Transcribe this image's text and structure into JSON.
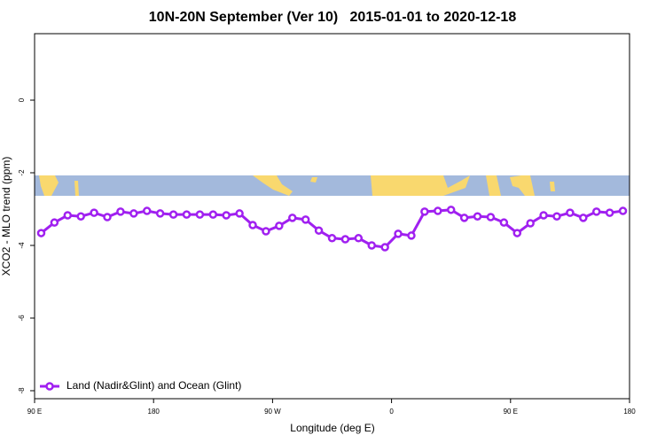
{
  "chart_data": {
    "type": "line",
    "title": "10N-20N September (Ver 10)   2015-01-01 to 2020-12-18",
    "x_label": "Longitude (deg E)",
    "y_label": "XCO2 - MLO trend (ppm)",
    "x": [
      95,
      105,
      115,
      125,
      135,
      145,
      155,
      165,
      175,
      185,
      195,
      205,
      215,
      225,
      235,
      245,
      255,
      265,
      275,
      285,
      295,
      305,
      315,
      325,
      335,
      345,
      355,
      365,
      375,
      385,
      395,
      405,
      415,
      425,
      435,
      445,
      455,
      465,
      475,
      485,
      495,
      505,
      515,
      525,
      535
    ],
    "series": [
      {
        "name": "Land (Nadir&Glint) and Ocean (Glint)",
        "color": "#a020f0",
        "values": [
          -3.66,
          -3.37,
          -3.17,
          -3.2,
          -3.1,
          -3.22,
          -3.07,
          -3.12,
          -3.05,
          -3.12,
          -3.15,
          -3.15,
          -3.15,
          -3.15,
          -3.17,
          -3.12,
          -3.44,
          -3.61,
          -3.46,
          -3.24,
          -3.29,
          -3.59,
          -3.8,
          -3.83,
          -3.8,
          -4.0,
          -4.05,
          -3.68,
          -3.73,
          -3.07,
          -3.05,
          -3.02,
          -3.24,
          -3.2,
          -3.22,
          -3.37,
          -3.66,
          -3.39,
          -3.17,
          -3.2,
          -3.1,
          -3.24,
          -3.07,
          -3.1,
          -3.05
        ]
      }
    ],
    "xlim": [
      90,
      540
    ],
    "xticks": [
      {
        "value": 90,
        "label": "90 E"
      },
      180,
      {
        "value": 270,
        "label": "90 W"
      },
      {
        "value": 360,
        "label": "0"
      },
      {
        "value": 450,
        "label": "90 E"
      },
      {
        "value": 540,
        "label": "180"
      }
    ],
    "ylim": [
      -8.22,
      1.83
    ],
    "yticks": [
      0,
      -2,
      -4,
      -6,
      -8
    ],
    "legend": "bottom-left"
  }
}
